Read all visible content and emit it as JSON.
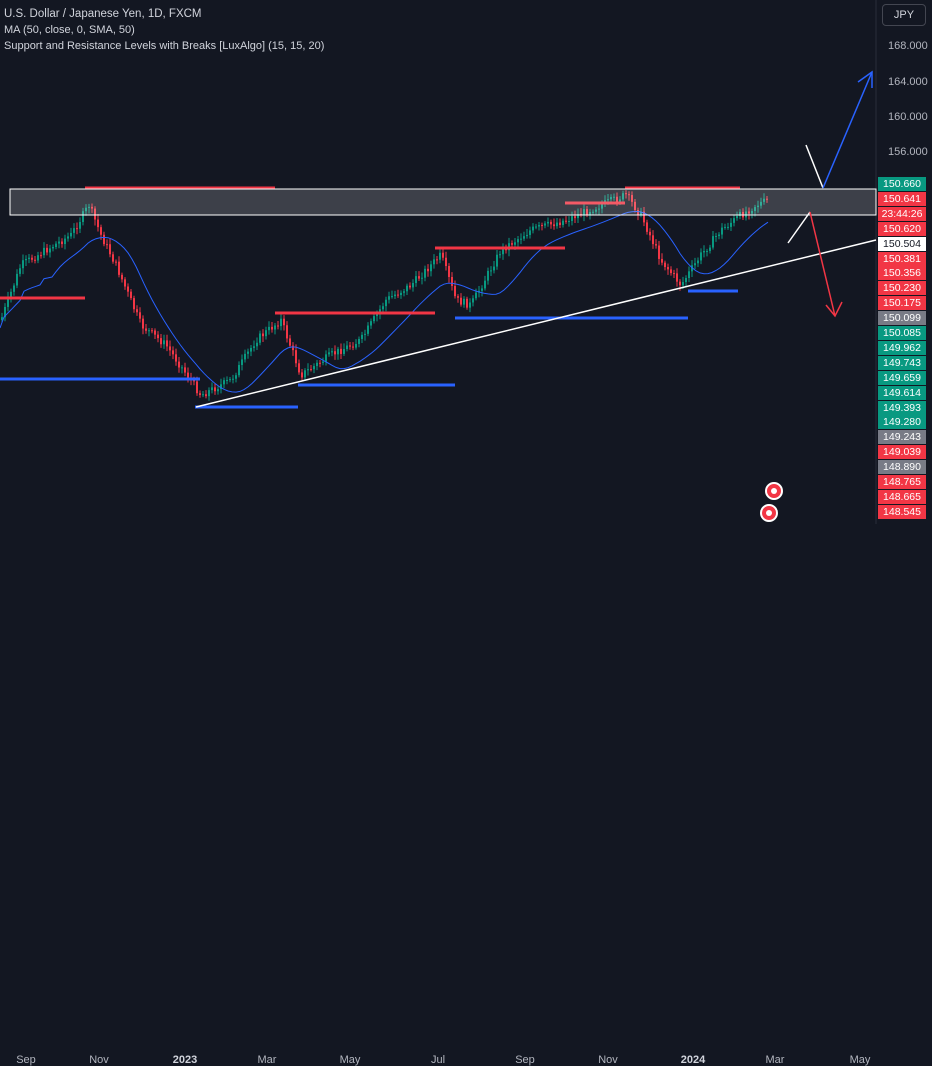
{
  "legend": {
    "symbol": "U.S. Dollar / Japanese Yen, 1D, FXCM",
    "ma": "MA (50, close, 0, SMA, 50)",
    "indicator": "Support and Resistance Levels with Breaks [LuxAlgo] (15, 15, 20)"
  },
  "currency": "JPY",
  "price_axis": [
    "168.000",
    "164.000",
    "160.000",
    "156.000"
  ],
  "price_tags": [
    {
      "text": "150.660",
      "color": "#089981"
    },
    {
      "text": "150.641",
      "color": "#f23645"
    },
    {
      "text": "23:44:26",
      "color": "#f23645"
    },
    {
      "text": "150.620",
      "color": "#f23645"
    },
    {
      "text": "150.504",
      "color": "#ffffff"
    },
    {
      "text": "150.381",
      "color": "#f23645"
    },
    {
      "text": "150.356",
      "color": "#f23645"
    },
    {
      "text": "150.230",
      "color": "#f23645"
    },
    {
      "text": "150.175",
      "color": "#f23645"
    },
    {
      "text": "150.099",
      "color": "#787b86"
    },
    {
      "text": "150.085",
      "color": "#089981"
    },
    {
      "text": "149.962",
      "color": "#089981"
    },
    {
      "text": "149.743",
      "color": "#089981"
    },
    {
      "text": "149.659",
      "color": "#089981"
    },
    {
      "text": "149.614",
      "color": "#089981"
    },
    {
      "text": "149.393",
      "color": "#089981"
    },
    {
      "text": "149.280",
      "color": "#089981"
    },
    {
      "text": "149.243",
      "color": "#787b86"
    },
    {
      "text": "149.039",
      "color": "#f23645"
    },
    {
      "text": "148.890",
      "color": "#787b86"
    },
    {
      "text": "148.765",
      "color": "#f23645"
    },
    {
      "text": "148.665",
      "color": "#f23645"
    },
    {
      "text": "148.545",
      "color": "#f23645"
    }
  ],
  "time_axis": [
    "Sep",
    "Nov",
    "2023",
    "Mar",
    "May",
    "Jul",
    "Sep",
    "Nov",
    "2024",
    "Mar",
    "May"
  ],
  "colors": {
    "background": "#131722",
    "up": "#089981",
    "down": "#f23645",
    "ma": "#2962ff",
    "resistance": "#f23645",
    "support": "#2962ff",
    "trendline": "#ffffff"
  }
}
